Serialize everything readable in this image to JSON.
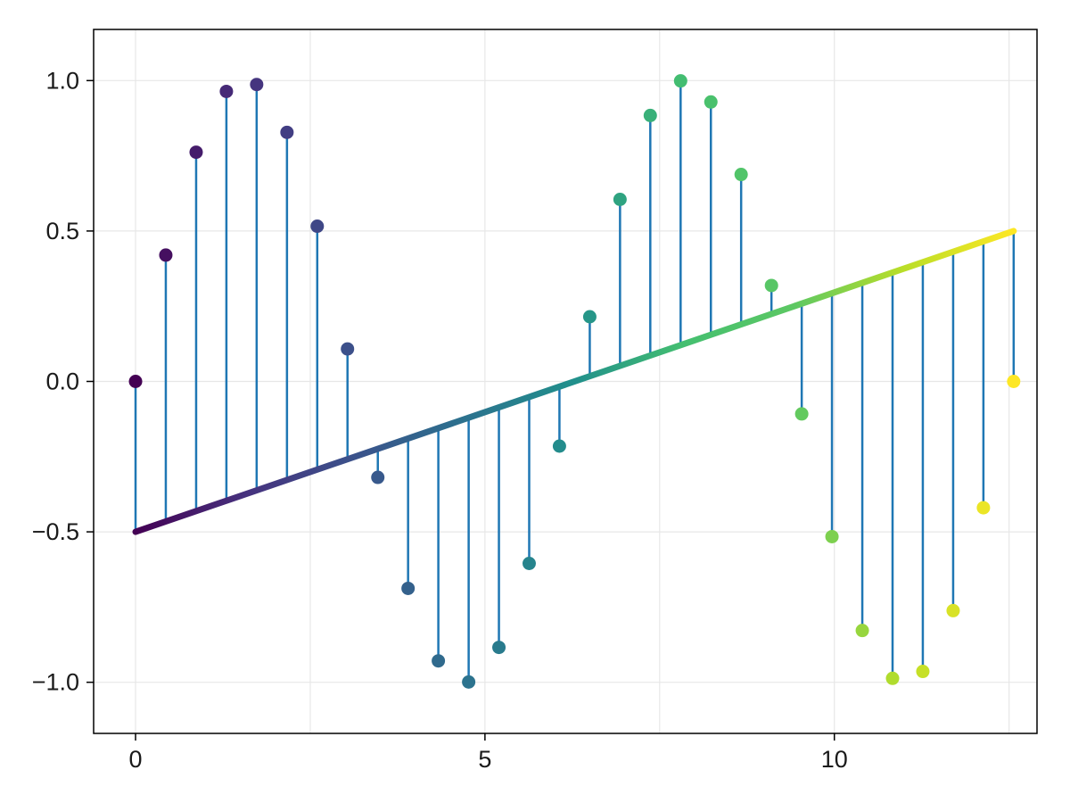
{
  "figure": {
    "background": "#ffffff",
    "plot_background": "#ffffff",
    "frame_color": "#000000",
    "grid_color": "#e7e7e7",
    "tick_color": "#000000",
    "label_color": "#1a1a1a",
    "tick_font_size": 27
  },
  "chart_data": {
    "type": "stem",
    "title": "",
    "xlabel": "",
    "ylabel": "",
    "description": "Stem plot of y = sin(x) sampled at 30 points over [0, 4pi], stems drawn from a sloped baseline running linearly from (0, -0.5) to (12.566, 0.5); markers colored by viridis colormap along x, baseline drawn as a thick viridis-gradient line, stems in blue.",
    "x": [
      0,
      0.433,
      0.867,
      1.3,
      1.733,
      2.167,
      2.6,
      3.033,
      3.467,
      3.9,
      4.333,
      4.767,
      5.2,
      5.633,
      6.066,
      6.5,
      6.933,
      7.366,
      7.8,
      8.233,
      8.666,
      9.1,
      9.533,
      9.966,
      10.4,
      10.833,
      11.266,
      11.7,
      12.133,
      12.566
    ],
    "y": [
      0.0,
      0.42,
      0.762,
      0.964,
      0.987,
      0.828,
      0.516,
      0.108,
      -0.319,
      -0.688,
      -0.929,
      -0.999,
      -0.884,
      -0.605,
      -0.215,
      0.215,
      0.605,
      0.884,
      0.999,
      0.929,
      0.688,
      0.319,
      -0.108,
      -0.516,
      -0.828,
      -0.987,
      -0.964,
      -0.762,
      -0.42,
      0.0
    ],
    "baseline": {
      "x": [
        0,
        12.566
      ],
      "y": [
        -0.5,
        0.5
      ]
    },
    "xlim": [
      -0.6,
      12.9
    ],
    "ylim": [
      -1.17,
      1.17
    ],
    "xticks": {
      "values": [
        0,
        5,
        10
      ],
      "labels": [
        "0",
        "5",
        "10"
      ]
    },
    "yticks": {
      "values": [
        1.0,
        0.5,
        0.0,
        -0.5,
        -1.0
      ],
      "labels": [
        "1.0",
        "0.5",
        "0.0",
        "−0.5",
        "−1.0"
      ]
    },
    "x_gridlines": [
      0,
      2.5,
      5,
      7.5,
      10,
      12.5
    ],
    "grid": true,
    "legend": false,
    "stem_color": "#1f77b4",
    "stem_width": 2.5,
    "marker_radius": 7.5,
    "baseline_width": 7,
    "colormap": {
      "name": "viridis",
      "stops": [
        [
          0.0,
          "#440154"
        ],
        [
          0.125,
          "#46327e"
        ],
        [
          0.25,
          "#3b528b"
        ],
        [
          0.375,
          "#2c728e"
        ],
        [
          0.5,
          "#21908c"
        ],
        [
          0.625,
          "#44bf70"
        ],
        [
          0.75,
          "#5dc863"
        ],
        [
          0.875,
          "#bade28"
        ],
        [
          1.0,
          "#fde725"
        ]
      ]
    }
  }
}
